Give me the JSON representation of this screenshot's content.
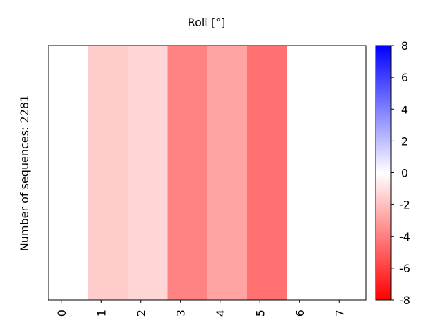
{
  "chart_data": {
    "type": "heatmap",
    "title": "Roll [°]",
    "ylabel": "Number of sequences: 2281",
    "xlabel": "",
    "x_ticks": [
      "0",
      "1",
      "2",
      "3",
      "4",
      "5",
      "6",
      "7"
    ],
    "xlim": [
      0,
      8
    ],
    "cells": [
      {
        "x_start": 0,
        "x_end": 1,
        "value": 0.0
      },
      {
        "x_start": 1,
        "x_end": 2,
        "value": -1.6
      },
      {
        "x_start": 2,
        "x_end": 3,
        "value": -1.3
      },
      {
        "x_start": 3,
        "x_end": 4,
        "value": -3.9
      },
      {
        "x_start": 4,
        "x_end": 5,
        "value": -2.9
      },
      {
        "x_start": 5,
        "x_end": 6,
        "value": -4.5
      },
      {
        "x_start": 6,
        "x_end": 8,
        "value": 0.0
      }
    ],
    "colorbar": {
      "colormap": "bwr",
      "range": [
        -8,
        8
      ],
      "ticks": [
        "8",
        "6",
        "4",
        "2",
        "0",
        "-2",
        "-4",
        "-6",
        "-8"
      ],
      "low_color": "#ff0000",
      "mid_color": "#ffffff",
      "high_color": "#0000ff"
    }
  }
}
